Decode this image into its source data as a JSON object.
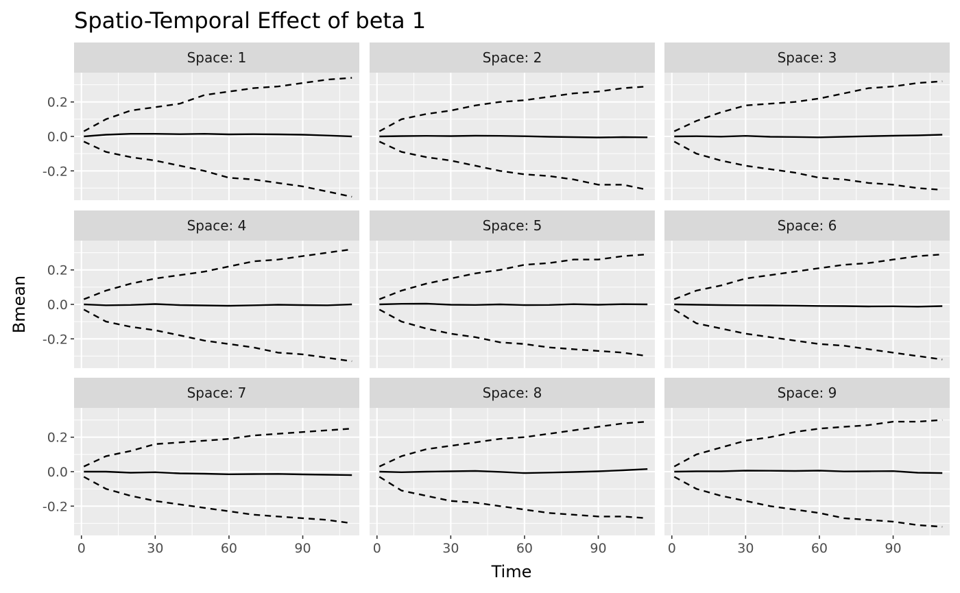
{
  "chart_data": {
    "type": "line",
    "title": "Spatio-Temporal Effect of beta 1",
    "xlabel": "Time",
    "ylabel": "Bmean",
    "facet_prefix": "Space: ",
    "xlim": [
      -3,
      113
    ],
    "ylim": [
      -0.37,
      0.37
    ],
    "x_ticks": [
      0,
      30,
      60,
      90
    ],
    "x_tick_labels": [
      "0",
      "30",
      "60",
      "90"
    ],
    "y_ticks": [
      -0.2,
      0.0,
      0.2
    ],
    "y_tick_labels": [
      "-0.2",
      "0.0",
      "0.2"
    ],
    "x": [
      1,
      10,
      20,
      30,
      40,
      50,
      60,
      70,
      80,
      90,
      100,
      110
    ],
    "grid": true,
    "legend": "none",
    "panels": [
      {
        "space": "1",
        "mean": [
          0.0,
          0.01,
          0.015,
          0.015,
          0.013,
          0.015,
          0.012,
          0.013,
          0.012,
          0.01,
          0.005,
          0.0
        ],
        "upper": [
          0.03,
          0.1,
          0.15,
          0.17,
          0.19,
          0.24,
          0.26,
          0.28,
          0.29,
          0.31,
          0.33,
          0.34
        ],
        "lower": [
          -0.03,
          -0.09,
          -0.12,
          -0.14,
          -0.17,
          -0.2,
          -0.24,
          -0.25,
          -0.27,
          -0.29,
          -0.32,
          -0.35
        ]
      },
      {
        "space": "2",
        "mean": [
          0.0,
          0.002,
          0.003,
          0.002,
          0.004,
          0.003,
          0.001,
          -0.002,
          -0.004,
          -0.006,
          -0.004,
          -0.005
        ],
        "upper": [
          0.03,
          0.1,
          0.13,
          0.15,
          0.18,
          0.2,
          0.21,
          0.23,
          0.25,
          0.26,
          0.28,
          0.29
        ],
        "lower": [
          -0.03,
          -0.09,
          -0.12,
          -0.14,
          -0.17,
          -0.2,
          -0.22,
          -0.23,
          -0.25,
          -0.28,
          -0.28,
          -0.31
        ]
      },
      {
        "space": "3",
        "mean": [
          0.0,
          0.001,
          -0.001,
          0.003,
          -0.002,
          -0.003,
          -0.005,
          -0.002,
          0.001,
          0.004,
          0.006,
          0.01
        ],
        "upper": [
          0.03,
          0.09,
          0.14,
          0.18,
          0.19,
          0.2,
          0.22,
          0.25,
          0.28,
          0.29,
          0.31,
          0.32
        ],
        "lower": [
          -0.03,
          -0.1,
          -0.14,
          -0.17,
          -0.19,
          -0.21,
          -0.24,
          -0.25,
          -0.27,
          -0.28,
          -0.3,
          -0.31
        ]
      },
      {
        "space": "4",
        "mean": [
          0.0,
          -0.005,
          -0.003,
          0.002,
          -0.004,
          -0.006,
          -0.008,
          -0.005,
          -0.002,
          -0.004,
          -0.005,
          0.0
        ],
        "upper": [
          0.03,
          0.08,
          0.12,
          0.15,
          0.17,
          0.19,
          0.22,
          0.25,
          0.26,
          0.28,
          0.3,
          0.32
        ],
        "lower": [
          -0.03,
          -0.1,
          -0.13,
          -0.15,
          -0.18,
          -0.21,
          -0.23,
          -0.25,
          -0.28,
          -0.29,
          -0.31,
          -0.33
        ]
      },
      {
        "space": "5",
        "mean": [
          0.0,
          0.003,
          0.004,
          -0.002,
          -0.003,
          0.0,
          -0.004,
          -0.003,
          0.001,
          -0.002,
          0.001,
          0.0
        ],
        "upper": [
          0.03,
          0.08,
          0.12,
          0.15,
          0.18,
          0.2,
          0.23,
          0.24,
          0.26,
          0.26,
          0.28,
          0.29
        ],
        "lower": [
          -0.03,
          -0.1,
          -0.14,
          -0.17,
          -0.19,
          -0.22,
          -0.23,
          -0.25,
          -0.26,
          -0.27,
          -0.28,
          -0.3
        ]
      },
      {
        "space": "6",
        "mean": [
          0.0,
          -0.002,
          -0.004,
          -0.005,
          -0.006,
          -0.007,
          -0.009,
          -0.01,
          -0.012,
          -0.011,
          -0.013,
          -0.01
        ],
        "upper": [
          0.03,
          0.08,
          0.11,
          0.15,
          0.17,
          0.19,
          0.21,
          0.23,
          0.24,
          0.26,
          0.28,
          0.29
        ],
        "lower": [
          -0.03,
          -0.11,
          -0.14,
          -0.17,
          -0.19,
          -0.21,
          -0.23,
          -0.24,
          -0.26,
          -0.28,
          -0.3,
          -0.32
        ]
      },
      {
        "space": "7",
        "mean": [
          0.0,
          0.0,
          -0.006,
          -0.003,
          -0.01,
          -0.012,
          -0.015,
          -0.014,
          -0.013,
          -0.016,
          -0.018,
          -0.02
        ],
        "upper": [
          0.03,
          0.09,
          0.12,
          0.16,
          0.17,
          0.18,
          0.19,
          0.21,
          0.22,
          0.23,
          0.24,
          0.25
        ],
        "lower": [
          -0.03,
          -0.1,
          -0.14,
          -0.17,
          -0.19,
          -0.21,
          -0.23,
          -0.25,
          -0.26,
          -0.27,
          -0.28,
          -0.3
        ]
      },
      {
        "space": "8",
        "mean": [
          0.0,
          -0.003,
          0.0,
          0.002,
          0.004,
          -0.001,
          -0.008,
          -0.005,
          -0.002,
          0.002,
          0.008,
          0.015
        ],
        "upper": [
          0.03,
          0.09,
          0.13,
          0.15,
          0.17,
          0.19,
          0.2,
          0.22,
          0.24,
          0.26,
          0.28,
          0.29
        ],
        "lower": [
          -0.03,
          -0.11,
          -0.14,
          -0.17,
          -0.18,
          -0.2,
          -0.22,
          -0.24,
          -0.25,
          -0.26,
          -0.26,
          -0.27
        ]
      },
      {
        "space": "9",
        "mean": [
          0.0,
          0.002,
          0.002,
          0.006,
          0.005,
          0.004,
          0.006,
          0.001,
          0.002,
          0.003,
          -0.006,
          -0.008
        ],
        "upper": [
          0.03,
          0.1,
          0.14,
          0.18,
          0.2,
          0.23,
          0.25,
          0.26,
          0.27,
          0.29,
          0.29,
          0.3
        ],
        "lower": [
          -0.03,
          -0.1,
          -0.14,
          -0.17,
          -0.2,
          -0.22,
          -0.24,
          -0.27,
          -0.28,
          -0.29,
          -0.31,
          -0.32
        ]
      }
    ]
  }
}
